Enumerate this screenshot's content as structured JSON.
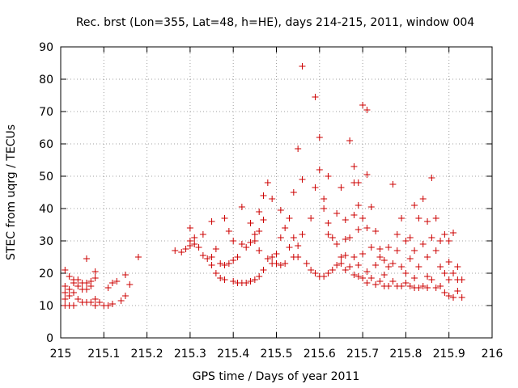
{
  "chart_data": {
    "type": "scatter",
    "title": "Rec. brst (Lon=355, Lat=48, h=HE), days 214-215, 2011, window 004",
    "xlabel": "GPS time / Days of year 2011",
    "ylabel": "STEC from uqrg / TECUs",
    "xlim": [
      215,
      216
    ],
    "ylim": [
      0,
      90
    ],
    "x_ticks": [
      215,
      215.1,
      215.2,
      215.3,
      215.4,
      215.5,
      215.6,
      215.7,
      215.8,
      215.9,
      216
    ],
    "x_tick_labels": [
      "215",
      "215.1",
      "215.2",
      "215.3",
      "215.4",
      "215.5",
      "215.6",
      "215.7",
      "215.8",
      "215.9",
      "216"
    ],
    "y_ticks": [
      0,
      10,
      20,
      30,
      40,
      50,
      60,
      70,
      80,
      90
    ],
    "y_tick_labels": [
      "0",
      "10",
      "20",
      "30",
      "40",
      "50",
      "60",
      "70",
      "80",
      "90"
    ],
    "grid": true,
    "marker": "+",
    "color": "#cc0000",
    "points": [
      [
        215.01,
        21
      ],
      [
        215.01,
        16
      ],
      [
        215.01,
        14
      ],
      [
        215.01,
        12
      ],
      [
        215.01,
        10
      ],
      [
        215.02,
        19
      ],
      [
        215.02,
        15
      ],
      [
        215.02,
        13
      ],
      [
        215.02,
        10
      ],
      [
        215.03,
        18
      ],
      [
        215.03,
        17
      ],
      [
        215.03,
        14
      ],
      [
        215.03,
        10
      ],
      [
        215.04,
        16
      ],
      [
        215.04,
        18
      ],
      [
        215.04,
        12
      ],
      [
        215.05,
        17
      ],
      [
        215.05,
        15
      ],
      [
        215.05,
        11
      ],
      [
        215.06,
        24.5
      ],
      [
        215.06,
        17
      ],
      [
        215.06,
        15
      ],
      [
        215.06,
        11
      ],
      [
        215.07,
        17.5
      ],
      [
        215.07,
        16
      ],
      [
        215.07,
        11
      ],
      [
        215.08,
        20.5
      ],
      [
        215.08,
        18.5
      ],
      [
        215.08,
        12
      ],
      [
        215.08,
        10
      ],
      [
        215.09,
        11
      ],
      [
        215.1,
        10
      ],
      [
        215.11,
        15.5
      ],
      [
        215.11,
        10
      ],
      [
        215.12,
        17
      ],
      [
        215.12,
        10.5
      ],
      [
        215.13,
        17.5
      ],
      [
        215.14,
        11.5
      ],
      [
        215.15,
        19.5
      ],
      [
        215.15,
        13
      ],
      [
        215.16,
        16.5
      ],
      [
        215.18,
        25
      ],
      [
        215.265,
        27
      ],
      [
        215.28,
        26.5
      ],
      [
        215.29,
        27.5
      ],
      [
        215.3,
        34
      ],
      [
        215.3,
        30
      ],
      [
        215.3,
        28.5
      ],
      [
        215.31,
        31
      ],
      [
        215.31,
        29
      ],
      [
        215.32,
        28
      ],
      [
        215.33,
        32
      ],
      [
        215.33,
        25.5
      ],
      [
        215.34,
        24.5
      ],
      [
        215.35,
        36
      ],
      [
        215.35,
        25
      ],
      [
        215.35,
        22.5
      ],
      [
        215.36,
        27.5
      ],
      [
        215.36,
        20
      ],
      [
        215.37,
        23
      ],
      [
        215.37,
        18.5
      ],
      [
        215.38,
        37
      ],
      [
        215.38,
        22.5
      ],
      [
        215.38,
        18
      ],
      [
        215.39,
        33
      ],
      [
        215.39,
        23
      ],
      [
        215.4,
        30
      ],
      [
        215.4,
        24
      ],
      [
        215.4,
        17.5
      ],
      [
        215.41,
        17
      ],
      [
        215.41,
        25
      ],
      [
        215.42,
        40.5
      ],
      [
        215.42,
        29
      ],
      [
        215.42,
        17
      ],
      [
        215.43,
        28
      ],
      [
        215.43,
        17
      ],
      [
        215.44,
        35.5
      ],
      [
        215.44,
        29.5
      ],
      [
        215.44,
        17.5
      ],
      [
        215.45,
        32
      ],
      [
        215.45,
        30
      ],
      [
        215.45,
        18
      ],
      [
        215.46,
        39
      ],
      [
        215.46,
        33
      ],
      [
        215.46,
        27
      ],
      [
        215.46,
        19
      ],
      [
        215.47,
        44
      ],
      [
        215.47,
        36.5
      ],
      [
        215.47,
        21
      ],
      [
        215.48,
        48
      ],
      [
        215.48,
        24.5
      ],
      [
        215.49,
        43
      ],
      [
        215.49,
        25
      ],
      [
        215.49,
        23
      ],
      [
        215.5,
        26
      ],
      [
        215.5,
        23
      ],
      [
        215.51,
        39.5
      ],
      [
        215.51,
        31
      ],
      [
        215.51,
        22.5
      ],
      [
        215.52,
        34
      ],
      [
        215.52,
        23
      ],
      [
        215.53,
        37
      ],
      [
        215.53,
        28
      ],
      [
        215.54,
        45
      ],
      [
        215.54,
        31
      ],
      [
        215.54,
        25
      ],
      [
        215.55,
        58.5
      ],
      [
        215.55,
        28.5
      ],
      [
        215.55,
        25
      ],
      [
        215.56,
        84
      ],
      [
        215.56,
        49
      ],
      [
        215.56,
        32
      ],
      [
        215.57,
        23
      ],
      [
        215.58,
        37
      ],
      [
        215.58,
        21
      ],
      [
        215.59,
        74.5
      ],
      [
        215.59,
        46.5
      ],
      [
        215.59,
        20
      ],
      [
        215.6,
        62
      ],
      [
        215.6,
        52
      ],
      [
        215.6,
        19
      ],
      [
        215.61,
        43
      ],
      [
        215.61,
        40
      ],
      [
        215.61,
        19
      ],
      [
        215.62,
        50
      ],
      [
        215.62,
        35.5
      ],
      [
        215.62,
        32
      ],
      [
        215.62,
        20
      ],
      [
        215.63,
        31
      ],
      [
        215.63,
        21
      ],
      [
        215.64,
        38.5
      ],
      [
        215.64,
        29
      ],
      [
        215.64,
        22.5
      ],
      [
        215.65,
        46.5
      ],
      [
        215.65,
        25
      ],
      [
        215.65,
        23
      ],
      [
        215.66,
        36.5
      ],
      [
        215.66,
        30.5
      ],
      [
        215.66,
        25.5
      ],
      [
        215.66,
        21
      ],
      [
        215.67,
        61
      ],
      [
        215.67,
        31
      ],
      [
        215.67,
        22
      ],
      [
        215.68,
        53
      ],
      [
        215.68,
        48
      ],
      [
        215.68,
        38
      ],
      [
        215.68,
        25
      ],
      [
        215.68,
        19.5
      ],
      [
        215.69,
        48
      ],
      [
        215.69,
        41
      ],
      [
        215.69,
        33.5
      ],
      [
        215.69,
        22.5
      ],
      [
        215.69,
        19
      ],
      [
        215.7,
        72
      ],
      [
        215.7,
        37
      ],
      [
        215.7,
        26
      ],
      [
        215.7,
        18.5
      ],
      [
        215.71,
        70.5
      ],
      [
        215.71,
        50.5
      ],
      [
        215.71,
        34
      ],
      [
        215.71,
        20.5
      ],
      [
        215.71,
        17
      ],
      [
        215.72,
        40.5
      ],
      [
        215.72,
        28
      ],
      [
        215.72,
        18.5
      ],
      [
        215.73,
        33
      ],
      [
        215.73,
        22.5
      ],
      [
        215.73,
        16.5
      ],
      [
        215.74,
        27.5
      ],
      [
        215.74,
        25
      ],
      [
        215.74,
        17.5
      ],
      [
        215.75,
        24
      ],
      [
        215.75,
        19.5
      ],
      [
        215.75,
        16
      ],
      [
        215.76,
        28
      ],
      [
        215.76,
        22
      ],
      [
        215.76,
        16
      ],
      [
        215.77,
        47.5
      ],
      [
        215.77,
        23
      ],
      [
        215.77,
        17.5
      ],
      [
        215.78,
        32
      ],
      [
        215.78,
        27
      ],
      [
        215.78,
        16
      ],
      [
        215.79,
        37
      ],
      [
        215.79,
        22
      ],
      [
        215.79,
        16
      ],
      [
        215.8,
        30
      ],
      [
        215.8,
        20
      ],
      [
        215.8,
        17
      ],
      [
        215.81,
        31
      ],
      [
        215.81,
        24.5
      ],
      [
        215.81,
        16
      ],
      [
        215.82,
        41
      ],
      [
        215.82,
        27
      ],
      [
        215.82,
        18.5
      ],
      [
        215.82,
        15.5
      ],
      [
        215.83,
        37
      ],
      [
        215.83,
        22
      ],
      [
        215.83,
        15.5
      ],
      [
        215.84,
        43
      ],
      [
        215.84,
        29
      ],
      [
        215.84,
        16
      ],
      [
        215.85,
        36
      ],
      [
        215.85,
        25
      ],
      [
        215.85,
        19
      ],
      [
        215.85,
        15.5
      ],
      [
        215.86,
        49.5
      ],
      [
        215.86,
        31
      ],
      [
        215.86,
        18
      ],
      [
        215.87,
        37
      ],
      [
        215.87,
        27
      ],
      [
        215.87,
        15.5
      ],
      [
        215.88,
        30
      ],
      [
        215.88,
        22
      ],
      [
        215.88,
        16
      ],
      [
        215.89,
        32
      ],
      [
        215.89,
        20
      ],
      [
        215.89,
        14
      ],
      [
        215.9,
        30
      ],
      [
        215.9,
        23.5
      ],
      [
        215.9,
        18
      ],
      [
        215.9,
        13
      ],
      [
        215.91,
        32.5
      ],
      [
        215.91,
        20
      ],
      [
        215.91,
        12.5
      ],
      [
        215.92,
        22
      ],
      [
        215.92,
        18
      ],
      [
        215.92,
        14.5
      ],
      [
        215.93,
        18
      ],
      [
        215.93,
        12.5
      ]
    ]
  }
}
